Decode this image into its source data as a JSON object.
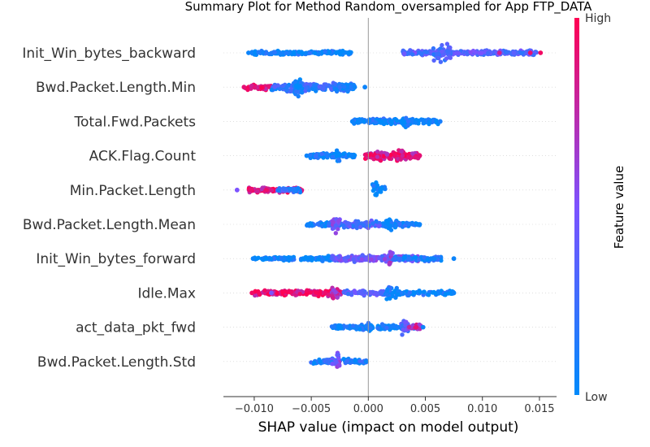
{
  "chart_data": {
    "type": "scatter",
    "title": "Summary Plot for Method Random_oversampled for App FTP_DATA",
    "xlabel": "SHAP value (impact on model output)",
    "xlim": [
      -0.0127,
      0.0165
    ],
    "xticks": [
      -0.01,
      -0.005,
      0.0,
      0.005,
      0.01,
      0.015
    ],
    "xtick_labels": [
      "−0.010",
      "−0.005",
      "0.000",
      "0.005",
      "0.010",
      "0.015"
    ],
    "grid": false,
    "colorbar": {
      "label": "Feature value",
      "high_label": "High",
      "low_label": "Low",
      "low_color": "#008afb",
      "high_color": "#ff0052"
    },
    "features": [
      {
        "name": "Init_Win_bytes_backward",
        "clusters": [
          {
            "x": [
              -0.0102,
              -0.0015
            ],
            "color": 0.05,
            "density": 0.6,
            "spread": 0.25
          },
          {
            "x": [
              0.003,
              0.0148
            ],
            "color": 0.35,
            "density": 0.7,
            "spread": 0.3
          },
          {
            "x": [
              0.0056,
              0.0072
            ],
            "color": 0.3,
            "density": 1.0,
            "spread": 1.0
          }
        ],
        "points": [
          {
            "x": 0.0151,
            "color": 0.95
          },
          {
            "x": 0.0142,
            "color": 0.9
          },
          {
            "x": -0.0105,
            "color": 0.05
          },
          {
            "x": 0.0115,
            "color": 0.8
          }
        ]
      },
      {
        "name": "Bwd.Packet.Length.Min",
        "clusters": [
          {
            "x": [
              -0.0108,
              -0.0085
            ],
            "color": 0.9,
            "density": 0.6,
            "spread": 0.35
          },
          {
            "x": [
              -0.0085,
              -0.0015
            ],
            "color": 0.2,
            "density": 0.8,
            "spread": 0.55
          },
          {
            "x": [
              -0.0065,
              -0.0058
            ],
            "color": 0.05,
            "density": 1.0,
            "spread": 1.0
          },
          {
            "x": [
              -0.0028,
              -0.0012
            ],
            "color": 0.05,
            "density": 0.7,
            "spread": 0.5
          }
        ],
        "points": [
          {
            "x": -0.0109,
            "color": 0.9
          },
          {
            "x": -0.0003,
            "color": 0.05
          },
          {
            "x": -0.0012,
            "color": 0.05
          }
        ]
      },
      {
        "name": "Total.Fwd.Packets",
        "clusters": [
          {
            "x": [
              -0.0013,
              0.0062
            ],
            "color": 0.05,
            "density": 0.7,
            "spread": 0.3
          },
          {
            "x": [
              0.003,
              0.0035
            ],
            "color": 0.05,
            "density": 1.0,
            "spread": 1.0
          },
          {
            "x": [
              0.0005,
              0.0015
            ],
            "color": 0.08,
            "density": 0.8,
            "spread": 0.4
          }
        ],
        "points": [
          {
            "x": 0.0063,
            "color": 0.1
          },
          {
            "x": -0.0014,
            "color": 0.05
          }
        ]
      },
      {
        "name": "ACK.Flag.Count",
        "clusters": [
          {
            "x": [
              -0.0052,
              -0.0012
            ],
            "color": 0.05,
            "density": 0.7,
            "spread": 0.35
          },
          {
            "x": [
              -0.0028,
              -0.0025
            ],
            "color": 0.05,
            "density": 1.0,
            "spread": 1.0
          },
          {
            "x": [
              -0.0003,
              0.0045
            ],
            "color": 0.85,
            "density": 0.9,
            "spread": 0.5
          },
          {
            "x": [
              0.0025,
              0.0032
            ],
            "color": 0.9,
            "density": 1.0,
            "spread": 0.9
          }
        ],
        "points": [
          {
            "x": -0.0054,
            "color": 0.05
          },
          {
            "x": 0.0045,
            "color": 0.9
          }
        ]
      },
      {
        "name": "Min.Packet.Length",
        "clusters": [
          {
            "x": [
              -0.0105,
              -0.0058
            ],
            "color": 0.85,
            "density": 0.8,
            "spread": 0.3
          },
          {
            "x": [
              -0.008,
              -0.0058
            ],
            "color": 0.2,
            "density": 0.7,
            "spread": 0.25
          },
          {
            "x": [
              0.0003,
              0.0008
            ],
            "color": 0.05,
            "density": 1.0,
            "spread": 1.0
          },
          {
            "x": [
              0.0008,
              0.0016
            ],
            "color": 0.05,
            "density": 0.6,
            "spread": 0.4
          }
        ],
        "points": [
          {
            "x": -0.0115,
            "color": 0.5
          },
          {
            "x": -0.0103,
            "color": 0.9
          }
        ]
      },
      {
        "name": "Bwd.Packet.Length.Mean",
        "clusters": [
          {
            "x": [
              -0.0055,
              0.0045
            ],
            "color": 0.1,
            "density": 0.6,
            "spread": 0.25
          },
          {
            "x": [
              -0.0032,
              -0.0025
            ],
            "color": 0.45,
            "density": 1.0,
            "spread": 1.0
          },
          {
            "x": [
              -0.0022,
              0.001
            ],
            "color": 0.3,
            "density": 0.7,
            "spread": 0.45
          },
          {
            "x": [
              0.0015,
              0.0025
            ],
            "color": 0.05,
            "density": 0.9,
            "spread": 0.7
          }
        ],
        "points": [
          {
            "x": -0.0052,
            "color": 0.05
          },
          {
            "x": 0.0045,
            "color": 0.05
          }
        ]
      },
      {
        "name": "Init_Win_bytes_forward",
        "clusters": [
          {
            "x": [
              -0.01,
              -0.0045
            ],
            "color": 0.05,
            "density": 0.5,
            "spread": 0.25
          },
          {
            "x": [
              -0.0055,
              -0.0025
            ],
            "color": 0.05,
            "density": 0.8,
            "spread": 0.3
          },
          {
            "x": [
              -0.0032,
              0.0045
            ],
            "color": 0.45,
            "density": 0.8,
            "spread": 0.4
          },
          {
            "x": [
              0.0018,
              0.0022
            ],
            "color": 0.6,
            "density": 1.0,
            "spread": 1.0
          },
          {
            "x": [
              0.0022,
              0.0065
            ],
            "color": 0.1,
            "density": 0.6,
            "spread": 0.3
          }
        ],
        "points": [
          {
            "x": -0.0101,
            "color": 0.05
          },
          {
            "x": 0.0075,
            "color": 0.05
          },
          {
            "x": 0.0055,
            "color": 0.05
          }
        ]
      },
      {
        "name": "Idle.Max",
        "clusters": [
          {
            "x": [
              -0.01,
              -0.0022
            ],
            "color": 0.9,
            "density": 0.7,
            "spread": 0.35
          },
          {
            "x": [
              -0.0032,
              -0.0025
            ],
            "color": 0.7,
            "density": 1.0,
            "spread": 0.9
          },
          {
            "x": [
              -0.0022,
              0.0015
            ],
            "color": 0.35,
            "density": 0.7,
            "spread": 0.35
          },
          {
            "x": [
              0.0015,
              0.0025
            ],
            "color": 0.05,
            "density": 1.0,
            "spread": 1.0
          },
          {
            "x": [
              0.0025,
              0.0075
            ],
            "color": 0.05,
            "density": 0.6,
            "spread": 0.3
          }
        ],
        "points": [
          {
            "x": -0.0102,
            "color": 0.95
          },
          {
            "x": 0.0075,
            "color": 0.05
          },
          {
            "x": -0.0085,
            "color": 0.5
          }
        ]
      },
      {
        "name": "act_data_pkt_fwd",
        "clusters": [
          {
            "x": [
              -0.0032,
              0.0045
            ],
            "color": 0.05,
            "density": 0.7,
            "spread": 0.3
          },
          {
            "x": [
              -0.0002,
              0.0003
            ],
            "color": 0.05,
            "density": 0.9,
            "spread": 0.5
          },
          {
            "x": [
              0.0028,
              0.0035
            ],
            "color": 0.35,
            "density": 1.0,
            "spread": 1.0
          },
          {
            "x": [
              0.0035,
              0.0046
            ],
            "color": 0.75,
            "density": 0.7,
            "spread": 0.4
          }
        ],
        "points": [
          {
            "x": 0.0048,
            "color": 0.05
          },
          {
            "x": 0.0042,
            "color": 0.9
          }
        ]
      },
      {
        "name": "Bwd.Packet.Length.Std",
        "clusters": [
          {
            "x": [
              -0.0052,
              -0.0001
            ],
            "color": 0.1,
            "density": 0.6,
            "spread": 0.3
          },
          {
            "x": [
              -0.0028,
              -0.0024
            ],
            "color": 0.5,
            "density": 1.0,
            "spread": 1.0
          },
          {
            "x": [
              -0.0038,
              -0.0028
            ],
            "color": 0.3,
            "density": 0.7,
            "spread": 0.4
          }
        ],
        "points": [
          {
            "x": -0.0002,
            "color": 0.05
          }
        ]
      }
    ]
  }
}
